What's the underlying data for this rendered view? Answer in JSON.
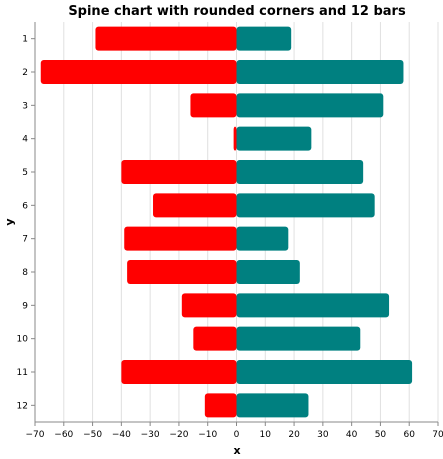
{
  "chart_data": {
    "type": "bar",
    "orientation": "horizontal-diverging",
    "title": "Spine chart with rounded corners and 12 bars",
    "xlabel": "x",
    "ylabel": "y",
    "xlim": [
      -70,
      70
    ],
    "x_ticks": [
      -70,
      -60,
      -50,
      -40,
      -30,
      -20,
      -10,
      0,
      10,
      20,
      30,
      40,
      50,
      60,
      70
    ],
    "grid": true,
    "categories": [
      "1",
      "2",
      "3",
      "4",
      "5",
      "6",
      "7",
      "8",
      "9",
      "10",
      "11",
      "12"
    ],
    "series": [
      {
        "color": "#ff0000",
        "values": [
          -49,
          -68,
          -16,
          -1,
          -40,
          -29,
          -39,
          -38,
          -19,
          -15,
          -40,
          -11
        ]
      },
      {
        "color": "#008080",
        "values": [
          19,
          58,
          51,
          26,
          44,
          48,
          18,
          22,
          53,
          43,
          61,
          25
        ]
      }
    ]
  }
}
